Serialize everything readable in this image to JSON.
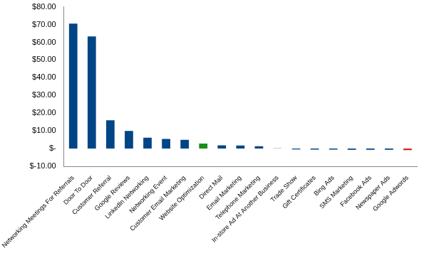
{
  "chart_data": {
    "type": "bar",
    "categories": [
      "Networking Meetings For Referrals",
      "Door To Door",
      "Customer Referral",
      "Google Reviews",
      "LinkedIn Networking",
      "Networking Event",
      "Customer Email Marketing",
      "Website Optimization",
      "Direct Mail",
      "Email Marketing",
      "Telephone Marketing",
      "In-store Ad At Another Business",
      "Trade Show",
      "Gift Certificates",
      "Bing Ads",
      "SMS Marketing",
      "Facebook Ads",
      "Newspaper Ads",
      "Google Adwords"
    ],
    "values": [
      70.5,
      63.3,
      16,
      10,
      6.2,
      5.5,
      5,
      2.8,
      1.8,
      1.7,
      1.3,
      0.1,
      -0.5,
      -0.6,
      -0.6,
      -0.7,
      -0.7,
      -0.7,
      -0.9
    ],
    "colors": [
      "#004586",
      "#004586",
      "#004586",
      "#004586",
      "#004586",
      "#004586",
      "#004586",
      "#1e8c1e",
      "#004586",
      "#004586",
      "#004586",
      "#004586",
      "#004586",
      "#004586",
      "#004586",
      "#004586",
      "#004586",
      "#004586",
      "#e0201b"
    ],
    "ylim": [
      -10,
      80
    ],
    "yticks": [
      {
        "value": -10,
        "label": "$-10.00"
      },
      {
        "value": 0,
        "label": "$-"
      },
      {
        "value": 10,
        "label": "$10.00"
      },
      {
        "value": 20,
        "label": "$20.00"
      },
      {
        "value": 30,
        "label": "$30.00"
      },
      {
        "value": 40,
        "label": "$40.00"
      },
      {
        "value": 50,
        "label": "$50.00"
      },
      {
        "value": 60,
        "label": "$60.00"
      },
      {
        "value": 70,
        "label": "$70.00"
      },
      {
        "value": 80,
        "label": "$80.00"
      }
    ],
    "grid": false
  }
}
